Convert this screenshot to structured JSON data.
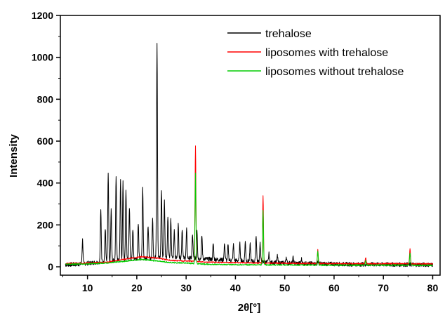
{
  "chart_data": {
    "type": "line",
    "title": "",
    "xlabel": "2θ[°]",
    "ylabel": "Intensity",
    "xlim": [
      4.5,
      81.5
    ],
    "ylim": [
      -40,
      1200
    ],
    "x_ticks": [
      10,
      20,
      30,
      40,
      50,
      60,
      70,
      80
    ],
    "y_ticks": [
      0,
      200,
      400,
      600,
      800,
      1000,
      1200
    ],
    "grid": false,
    "legend_position": "top-right",
    "series": [
      {
        "name": "trehalose",
        "color": "#000000",
        "baseline": [
          [
            5.5,
            10
          ],
          [
            8,
            12
          ],
          [
            12,
            22
          ],
          [
            18,
            35
          ],
          [
            24,
            45
          ],
          [
            30,
            42
          ],
          [
            36,
            35
          ],
          [
            42,
            28
          ],
          [
            48,
            20
          ],
          [
            56,
            15
          ],
          [
            64,
            12
          ],
          [
            72,
            11
          ],
          [
            80,
            10
          ]
        ],
        "peaks": [
          [
            9.0,
            115
          ],
          [
            12.7,
            245
          ],
          [
            13.6,
            160
          ],
          [
            14.2,
            415
          ],
          [
            14.8,
            245
          ],
          [
            15.8,
            410
          ],
          [
            16.7,
            385
          ],
          [
            17.2,
            370
          ],
          [
            17.8,
            335
          ],
          [
            18.5,
            250
          ],
          [
            19.2,
            145
          ],
          [
            20.3,
            165
          ],
          [
            21.2,
            340
          ],
          [
            22.3,
            155
          ],
          [
            23.2,
            185
          ],
          [
            24.1,
            1030
          ],
          [
            25.0,
            320
          ],
          [
            25.6,
            270
          ],
          [
            26.3,
            195
          ],
          [
            26.9,
            180
          ],
          [
            27.6,
            135
          ],
          [
            28.4,
            160
          ],
          [
            29.2,
            140
          ],
          [
            30.1,
            135
          ],
          [
            31.3,
            110
          ],
          [
            32.2,
            140
          ],
          [
            33.2,
            110
          ],
          [
            35.5,
            75
          ],
          [
            37.8,
            80
          ],
          [
            38.5,
            70
          ],
          [
            39.6,
            75
          ],
          [
            40.9,
            80
          ],
          [
            42.0,
            90
          ],
          [
            43.0,
            80
          ],
          [
            44.2,
            125
          ],
          [
            45.0,
            90
          ],
          [
            46.8,
            40
          ],
          [
            48.5,
            30
          ],
          [
            50.3,
            30
          ],
          [
            51.7,
            25
          ],
          [
            53.4,
            20
          ],
          [
            56.8,
            15
          ]
        ],
        "noise": 10,
        "seed": 7
      },
      {
        "name": "liposomes with trehalose",
        "color": "#ff0000",
        "baseline": [
          [
            5.5,
            15
          ],
          [
            10,
            18
          ],
          [
            14,
            22
          ],
          [
            18,
            38
          ],
          [
            21,
            48
          ],
          [
            24,
            42
          ],
          [
            27,
            30
          ],
          [
            30,
            28
          ],
          [
            34,
            22
          ],
          [
            40,
            20
          ],
          [
            46,
            18
          ],
          [
            50,
            17
          ],
          [
            56,
            16
          ],
          [
            64,
            15
          ],
          [
            72,
            15
          ],
          [
            80,
            14
          ]
        ],
        "peaks": [
          [
            31.9,
            555
          ],
          [
            45.6,
            320
          ],
          [
            56.7,
            65
          ],
          [
            66.4,
            30
          ],
          [
            75.4,
            75
          ]
        ],
        "noise": 3,
        "seed": 21
      },
      {
        "name": "liposomes without trehalose",
        "color": "#00cc00",
        "baseline": [
          [
            5.5,
            12
          ],
          [
            10,
            14
          ],
          [
            14,
            18
          ],
          [
            18,
            28
          ],
          [
            21,
            35
          ],
          [
            24,
            28
          ],
          [
            27,
            20
          ],
          [
            30,
            18
          ],
          [
            34,
            12
          ],
          [
            40,
            10
          ],
          [
            46,
            9
          ],
          [
            50,
            9
          ],
          [
            56,
            8
          ],
          [
            64,
            8
          ],
          [
            72,
            8
          ],
          [
            80,
            7
          ]
        ],
        "peaks": [
          [
            31.9,
            430
          ],
          [
            45.6,
            260
          ],
          [
            56.7,
            65
          ],
          [
            66.4,
            20
          ],
          [
            75.4,
            60
          ]
        ],
        "noise": 3,
        "seed": 42
      }
    ]
  }
}
